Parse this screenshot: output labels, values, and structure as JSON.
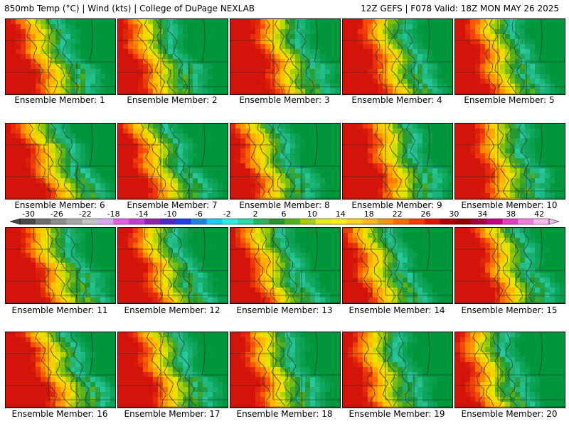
{
  "header": {
    "left": "850mb Temp (°C) | Wind (kts) | College of DuPage NEXLAB",
    "right": "12Z GEFS | F078 Valid: 18Z MON MAY 26 2025"
  },
  "panels": [
    {
      "label": "Ensemble Member: 1"
    },
    {
      "label": "Ensemble Member: 2"
    },
    {
      "label": "Ensemble Member: 3"
    },
    {
      "label": "Ensemble Member: 4"
    },
    {
      "label": "Ensemble Member: 5"
    },
    {
      "label": "Ensemble Member: 6"
    },
    {
      "label": "Ensemble Member: 7"
    },
    {
      "label": "Ensemble Member: 8"
    },
    {
      "label": "Ensemble Member: 9"
    },
    {
      "label": "Ensemble Member: 10"
    },
    {
      "label": "Ensemble Member: 11"
    },
    {
      "label": "Ensemble Member: 12"
    },
    {
      "label": "Ensemble Member: 13"
    },
    {
      "label": "Ensemble Member: 14"
    },
    {
      "label": "Ensemble Member: 15"
    },
    {
      "label": "Ensemble Member: 16"
    },
    {
      "label": "Ensemble Member: 17"
    },
    {
      "label": "Ensemble Member: 18"
    },
    {
      "label": "Ensemble Member: 19"
    },
    {
      "label": "Ensemble Member: 20"
    }
  ],
  "colorbar": {
    "ticks": [
      "-30",
      "-26",
      "-22",
      "-18",
      "-14",
      "-10",
      "-6",
      "-2",
      "2",
      "6",
      "10",
      "14",
      "18",
      "22",
      "26",
      "30",
      "34",
      "38",
      "42"
    ],
    "colors": [
      "#4a4a4a",
      "#6e6e6e",
      "#8c8c8c",
      "#a8a8a8",
      "#c4c4c4",
      "#d9a8f0",
      "#e060e0",
      "#c040d0",
      "#9020c0",
      "#5028c0",
      "#2040e0",
      "#2080f0",
      "#20c8f0",
      "#30e8e0",
      "#30d8a8",
      "#20b860",
      "#1a9a30",
      "#58b020",
      "#a8d000",
      "#e8ec00",
      "#fff000",
      "#ffd800",
      "#ffb800",
      "#ff9000",
      "#ff6a00",
      "#f03c00",
      "#d81800",
      "#b00000",
      "#900000",
      "#a00040",
      "#c00080",
      "#e040c0",
      "#f080e0",
      "#f8b8f0"
    ]
  }
}
